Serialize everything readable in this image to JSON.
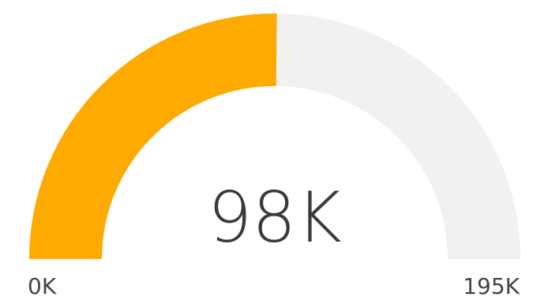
{
  "chart_data": {
    "type": "gauge",
    "value": 98,
    "min": 0,
    "max": 195,
    "value_label": "98K",
    "min_label": "0K",
    "max_label": "195K",
    "colors": {
      "fill": "#FFAA00",
      "track": "#F2F1F0"
    }
  }
}
